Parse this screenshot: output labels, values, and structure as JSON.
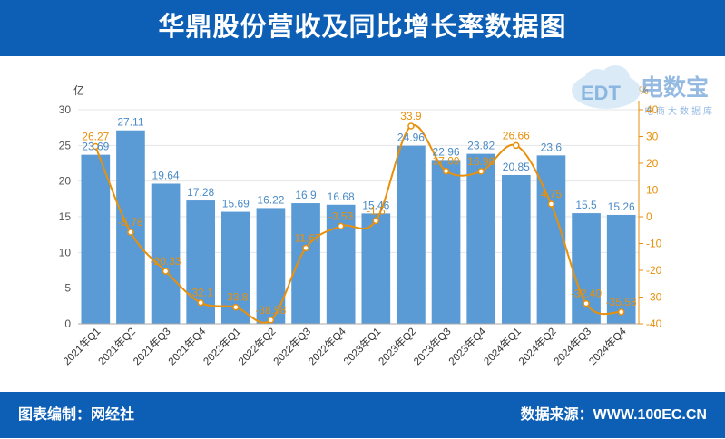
{
  "header": {
    "title": "华鼎股份营收及同比增长率数据图"
  },
  "footer": {
    "left_text": "图表编制：网经社",
    "right_text": "数据来源：WWW.100EC.CN"
  },
  "logo": {
    "badge": "EDT",
    "name": "电数宝",
    "tagline": "电商大数据库"
  },
  "colors": {
    "header_bg": "#0d5fb5",
    "bar": "#5b9bd5",
    "bar_label": "#4a8bc6",
    "line": "#e8900a",
    "line_label": "#e8900a"
  },
  "chart_data": {
    "type": "bar",
    "categories": [
      "2021年Q1",
      "2021年Q2",
      "2021年Q3",
      "2021年Q4",
      "2022年Q1",
      "2022年Q2",
      "2022年Q3",
      "2022年Q4",
      "2023年Q1",
      "2023年Q2",
      "2023年Q3",
      "2023年Q4",
      "2024年Q1",
      "2024年Q2",
      "2024年Q3",
      "2024年Q4"
    ],
    "bar_values": [
      23.69,
      27.11,
      19.64,
      17.28,
      15.69,
      16.22,
      16.9,
      16.68,
      15.46,
      24.96,
      22.96,
      23.82,
      20.85,
      23.6,
      15.5,
      15.26
    ],
    "bar_labels": [
      "23.69",
      "27.11",
      "19.64",
      "17.28",
      "15.69",
      "16.22",
      "16.9",
      "16.68",
      "15.46",
      "24.96",
      "22.96",
      "23.82",
      "20.85",
      "23.6",
      "15.5",
      "15.26"
    ],
    "line_values": [
      26.27,
      -5.78,
      -20.33,
      -32.1,
      -33.8,
      -38.58,
      -11.67,
      -3.53,
      -1.5,
      33.9,
      17.09,
      16.98,
      26.66,
      4.75,
      -32.4,
      -35.58
    ],
    "line_labels": [
      "26.27",
      "-5.78",
      "-20.33",
      "-32.1",
      "-33.8",
      "-38.58",
      "-11.67",
      "-3.53",
      "-1.5",
      "33.9",
      "17.09",
      "16.98",
      "26.66",
      "4.75",
      "-32.40",
      "-35.58"
    ],
    "left_axis": {
      "unit": "亿",
      "ylim": [
        0,
        30
      ],
      "ticks": [
        "0",
        "5",
        "10",
        "15",
        "20",
        "25",
        "30"
      ]
    },
    "right_axis": {
      "unit": "%",
      "ylim": [
        -40,
        40
      ],
      "ticks": [
        "-40",
        "-30",
        "-20",
        "-10",
        "0",
        "10",
        "20",
        "30",
        "40"
      ]
    },
    "grid": true
  }
}
